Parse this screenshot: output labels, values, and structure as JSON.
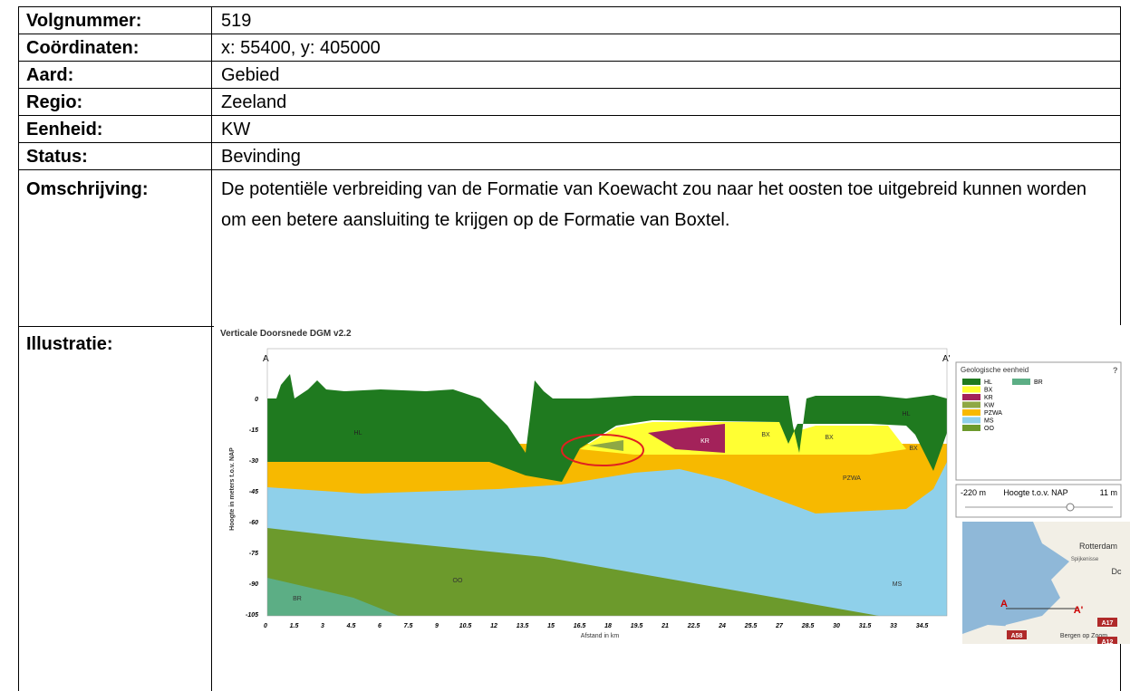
{
  "table": {
    "rows": [
      {
        "label": "Volgnummer:",
        "value": "519"
      },
      {
        "label": "Coördinaten:",
        "value": "x: 55400, y: 405000"
      },
      {
        "label": "Aard:",
        "value": "Gebied"
      },
      {
        "label": "Regio:",
        "value": "Zeeland"
      },
      {
        "label": "Eenheid:",
        "value": "KW"
      },
      {
        "label": "Status:",
        "value": "Bevinding"
      },
      {
        "label": "Omschrijving:",
        "value": "De potentiële verbreiding van de Formatie van Koewacht zou naar het oosten toe uitgebreid kunnen worden om een betere aansluiting te krijgen op de Formatie van Boxtel."
      },
      {
        "label": "Illustratie:"
      }
    ]
  },
  "illustration": {
    "title": "Verticale Doorsnede DGM v2.2",
    "start_marker": "A",
    "end_marker": "A'",
    "y_axis_label": "Hoogte in meters t.o.v. NAP",
    "x_axis_label": "Afstand in km",
    "yticks": [
      0,
      -15,
      -30,
      -45,
      -60,
      -75,
      -90,
      -105
    ],
    "xticks": [
      0,
      1.5,
      3,
      4.5,
      6,
      7.5,
      9,
      10.5,
      12,
      13.5,
      15,
      16.5,
      18,
      19.5,
      21,
      22.5,
      24,
      25.5,
      27,
      28.5,
      30,
      31.5,
      33,
      34.5
    ],
    "layer_labels": [
      "HL",
      "KR",
      "BX",
      "BX",
      "BX",
      "HL",
      "PZWA",
      "MS",
      "OO",
      "BR"
    ],
    "legend": {
      "title": "Geologische eenheid",
      "help": "?",
      "items": [
        "HL",
        "BR",
        "BX",
        "KR",
        "KW",
        "PZWA",
        "MS",
        "OO"
      ]
    },
    "slider": {
      "min": "-220 m",
      "label": "Hoogte t.o.v. NAP",
      "max": "11 m"
    },
    "map_labels": [
      "Rotterdam",
      "Spijkenisse",
      "Dc",
      "A",
      "A'",
      "A17",
      "A58",
      "Bergen op Zoom",
      "A12"
    ]
  }
}
